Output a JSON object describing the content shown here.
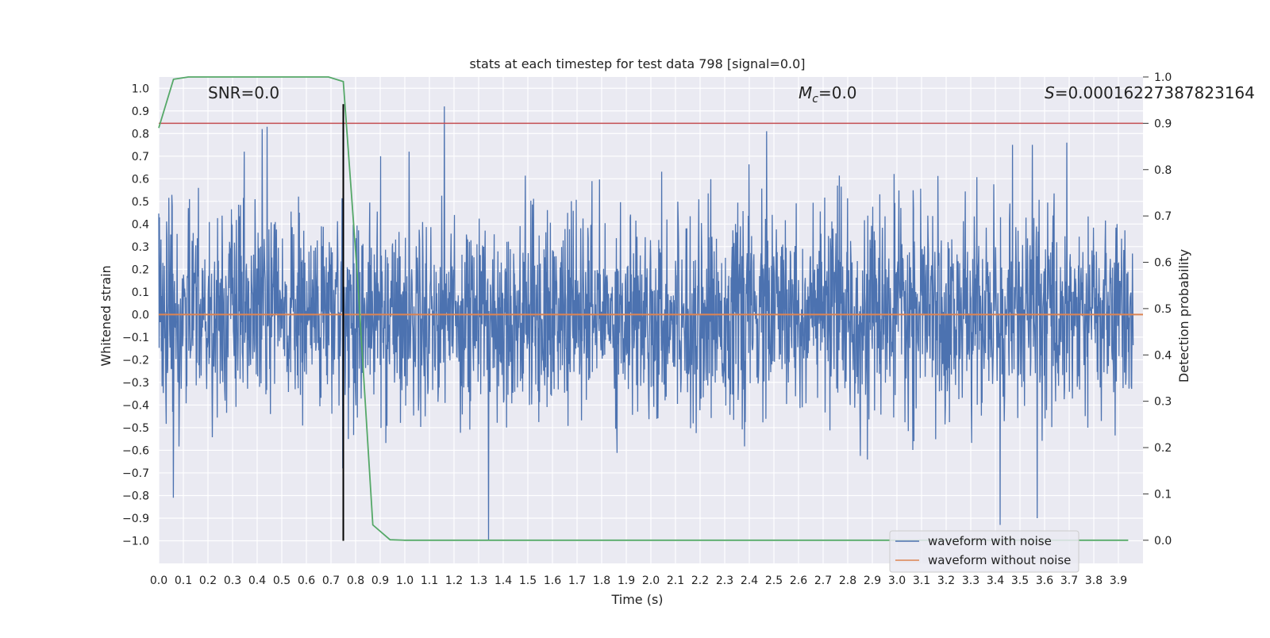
{
  "chart_data": {
    "type": "line",
    "title": "stats at each timestep for test data 798 [signal=0.0]",
    "xlabel": "Time (s)",
    "ylabel": "Whitened strain",
    "ylabel_right": "Detection probability",
    "xlim": [
      0.0,
      4.0
    ],
    "ylim": [
      -1.1,
      1.05
    ],
    "ylim_right": [
      -0.05,
      1.0
    ],
    "x_ticks": [
      "0.0",
      "0.1",
      "0.2",
      "0.3",
      "0.4",
      "0.5",
      "0.6",
      "0.7",
      "0.8",
      "0.9",
      "1.0",
      "1.1",
      "1.2",
      "1.3",
      "1.4",
      "1.5",
      "1.6",
      "1.7",
      "1.8",
      "1.9",
      "2.0",
      "2.1",
      "2.2",
      "2.3",
      "2.4",
      "2.5",
      "2.6",
      "2.7",
      "2.8",
      "2.9",
      "3.0",
      "3.1",
      "3.2",
      "3.3",
      "3.4",
      "3.5",
      "3.6",
      "3.7",
      "3.8",
      "3.9"
    ],
    "y_ticks": [
      "1.0",
      "0.9",
      "0.8",
      "0.7",
      "0.6",
      "0.5",
      "0.4",
      "0.3",
      "0.2",
      "0.1",
      "0.0",
      "−0.1",
      "−0.2",
      "−0.3",
      "−0.4",
      "−0.5",
      "−0.6",
      "−0.7",
      "−0.8",
      "−0.9",
      "−1.0"
    ],
    "y_ticks_right": [
      "0.0",
      "0.1",
      "0.2",
      "0.3",
      "0.4",
      "0.5",
      "0.6",
      "0.7",
      "0.8",
      "0.9",
      "1.0"
    ],
    "annotations": {
      "snr": "SNR=0.0",
      "mc_symbol": "M",
      "mc_sub": "c",
      "mc_value": "=0.0",
      "s_symbol": "S",
      "s_value": "=0.00016227387823164"
    },
    "series": [
      {
        "name": "waveform with noise",
        "color": "#4c72b0",
        "kind": "noise",
        "amplitude_range": [
          -1.0,
          0.92
        ],
        "typical_std": 0.22,
        "peaks": [
          {
            "x": 0.06,
            "y": 0.78
          },
          {
            "x": 0.06,
            "y": -0.81
          },
          {
            "x": 0.42,
            "y": 0.82
          },
          {
            "x": 0.44,
            "y": 0.83
          },
          {
            "x": 1.16,
            "y": 0.92
          },
          {
            "x": 1.34,
            "y": -1.0
          },
          {
            "x": 2.47,
            "y": 0.81
          },
          {
            "x": 3.42,
            "y": -0.93
          },
          {
            "x": 3.57,
            "y": -0.9
          },
          {
            "x": 3.69,
            "y": 0.76
          },
          {
            "x": 3.55,
            "y": 0.75
          },
          {
            "x": 3.47,
            "y": 0.75
          }
        ]
      },
      {
        "name": "waveform without noise",
        "color": "#dd8452",
        "x": [
          0.0,
          4.0
        ],
        "y": [
          0.0,
          0.0
        ]
      },
      {
        "name": "detection probability",
        "color": "#55a868",
        "axis": "right",
        "x": [
          0.0,
          0.06,
          0.12,
          0.19,
          0.25,
          0.31,
          0.37,
          0.44,
          0.5,
          0.56,
          0.62,
          0.69,
          0.75,
          0.81,
          0.87,
          0.94,
          1.0,
          1.5,
          2.0,
          2.5,
          3.0,
          3.5,
          3.94
        ],
        "y": [
          0.89,
          0.995,
          1.0,
          1.0,
          1.0,
          1.0,
          1.0,
          1.0,
          1.0,
          1.0,
          1.0,
          1.0,
          0.99,
          0.55,
          0.033,
          0.001,
          0.0,
          0.0,
          0.0,
          0.0,
          0.0,
          0.0,
          0.0
        ]
      }
    ],
    "threshold": {
      "value": 0.9,
      "axis": "right",
      "color": "#c44e52"
    },
    "marker_time": {
      "x": 0.75,
      "color": "#000000"
    },
    "legend": {
      "position": "bottom-right",
      "entries": [
        {
          "label": "waveform with noise",
          "color": "#4c72b0"
        },
        {
          "label": "waveform without noise",
          "color": "#dd8452"
        }
      ]
    },
    "background": "#eaeaf2",
    "grid": true
  }
}
